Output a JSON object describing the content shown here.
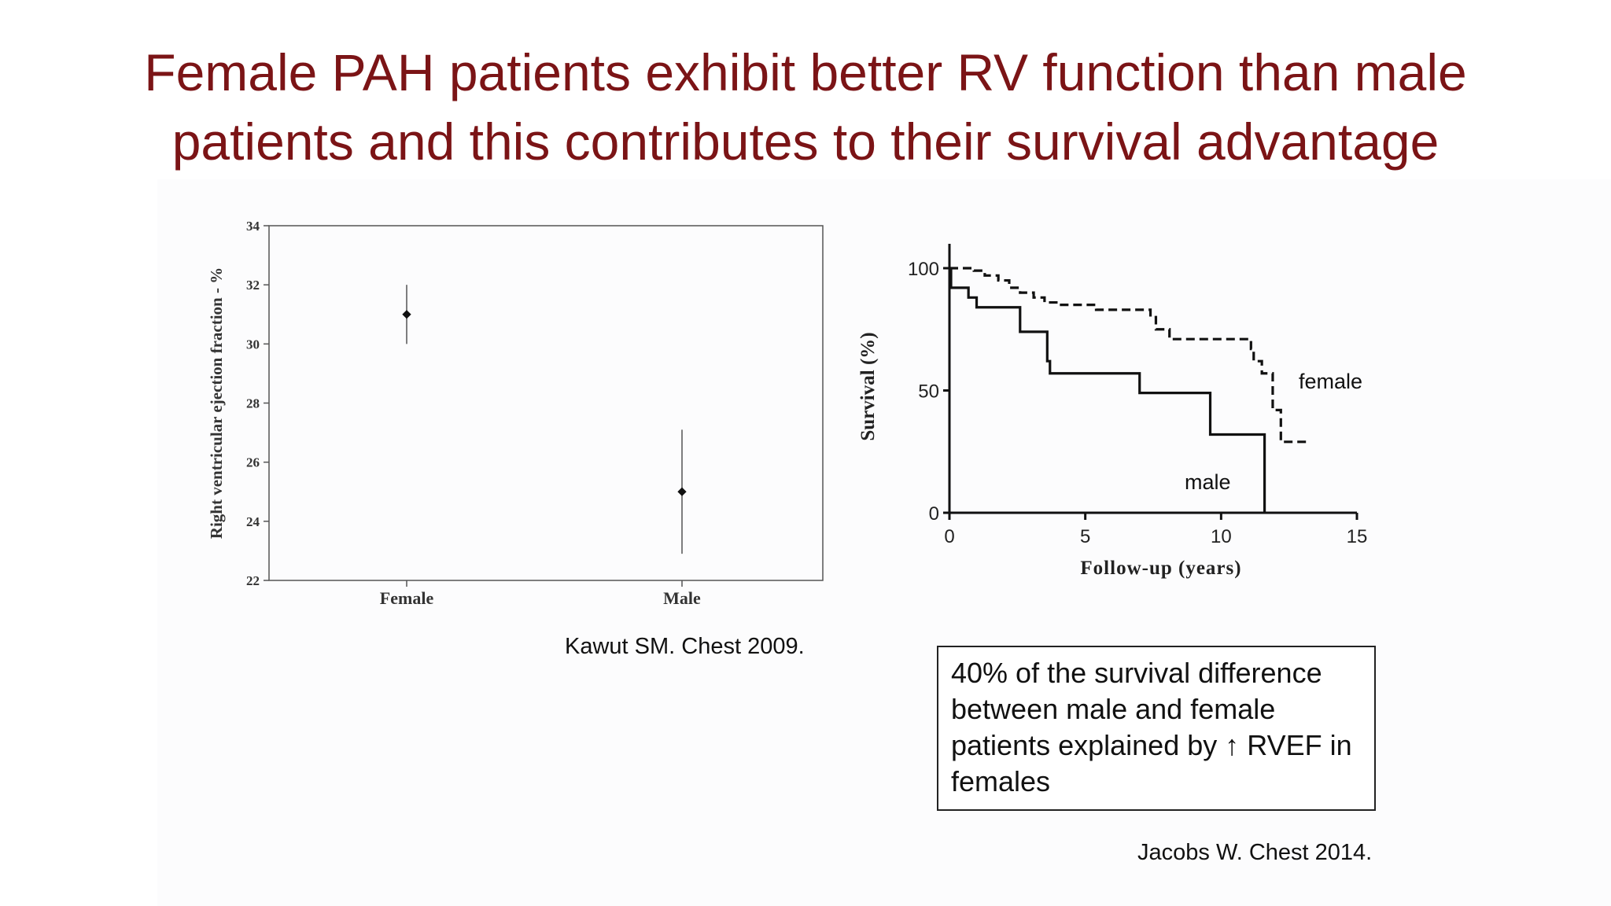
{
  "slide": {
    "title_line1": "Female PAH patients exhibit better RV function than male",
    "title_line2": "patients and this contributes to their survival advantage",
    "citation_left": "Kawut SM. Chest 2009.",
    "citation_right": "Jacobs W. Chest 2014.",
    "note_text": "40% of the survival difference between male and female patients explained by ↑ RVEF in females"
  },
  "chart_data": [
    {
      "type": "scatter",
      "title": "",
      "xlabel": "",
      "ylabel": "Right ventricular ejection fraction - %",
      "categories": [
        "Female",
        "Male"
      ],
      "ylim": [
        22,
        34
      ],
      "yticks": [
        22,
        24,
        26,
        28,
        30,
        32,
        34
      ],
      "series": [
        {
          "points": [
            {
              "category": "Female",
              "y": 31.0,
              "ci_low": 30.0,
              "ci_high": 32.0
            },
            {
              "category": "Male",
              "y": 25.0,
              "ci_low": 22.9,
              "ci_high": 27.1
            }
          ]
        }
      ],
      "grid": false
    },
    {
      "type": "line",
      "title": "",
      "xlabel": "Follow-up (years)",
      "ylabel": "Survival (%)",
      "xlim": [
        0,
        15
      ],
      "ylim": [
        0,
        100
      ],
      "xticks": [
        0,
        5,
        10,
        15
      ],
      "yticks": [
        0,
        50,
        100
      ],
      "grid": false,
      "series": [
        {
          "name": "female",
          "style": "dashed",
          "x": [
            0,
            0.9,
            1.3,
            1.8,
            2.2,
            2.6,
            3.1,
            3.5,
            4.0,
            5.4,
            7.4,
            7.6,
            8.1,
            11.1,
            11.2,
            11.5,
            11.9,
            12.2,
            13.2
          ],
          "y": [
            100,
            99,
            97,
            95,
            92,
            90,
            88,
            86,
            85,
            83,
            80,
            75,
            71,
            67,
            62,
            57,
            42,
            29,
            29
          ]
        },
        {
          "name": "male",
          "style": "solid",
          "x": [
            0,
            0.7,
            1.0,
            2.6,
            3.6,
            3.7,
            7.0,
            9.6,
            11.6,
            11.6
          ],
          "y": [
            92,
            88,
            84,
            74,
            62,
            57,
            49,
            32,
            32,
            0
          ]
        }
      ]
    }
  ]
}
